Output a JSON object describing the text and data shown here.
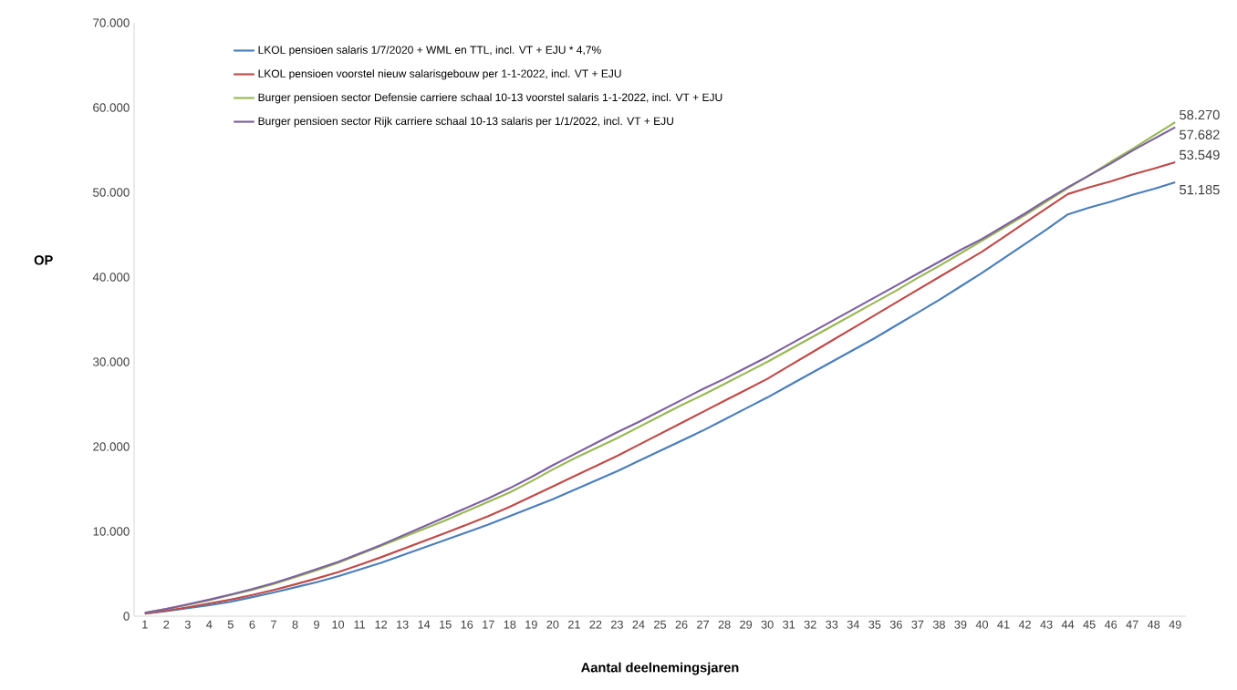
{
  "chart_data": {
    "type": "line",
    "xlabel": "Aantal deelnemingsjaren",
    "ylabel": "OP",
    "categories": [
      "1",
      "2",
      "3",
      "4",
      "5",
      "6",
      "7",
      "8",
      "9",
      "10",
      "11",
      "12",
      "13",
      "14",
      "15",
      "16",
      "17",
      "18",
      "19",
      "20",
      "21",
      "22",
      "23",
      "24",
      "25",
      "26",
      "27",
      "28",
      "29",
      "30",
      "31",
      "32",
      "33",
      "34",
      "35",
      "36",
      "37",
      "38",
      "39",
      "40",
      "41",
      "42",
      "43",
      "44",
      "45",
      "46",
      "47",
      "48",
      "49"
    ],
    "ylim": [
      0,
      70000
    ],
    "yticks": [
      0,
      {
        "value": 10000,
        "label": "10.000"
      },
      {
        "value": 20000,
        "label": "20.000"
      },
      {
        "value": 30000,
        "label": "30.000"
      },
      {
        "value": 40000,
        "label": "40.000"
      },
      {
        "value": 50000,
        "label": "50.000"
      },
      {
        "value": 60000,
        "label": "60.000"
      },
      {
        "value": 70000,
        "label": "70.000"
      }
    ],
    "legend": "top left",
    "series": [
      {
        "name": "LKOL pensioen salaris 1/7/2020 + WML en TTL, incl. VT + EJU * 4,7%",
        "color": "#4a7ebb",
        "values": [
          300,
          600,
          950,
          1300,
          1700,
          2250,
          2800,
          3400,
          4000,
          4700,
          5500,
          6300,
          7200,
          8100,
          9000,
          9900,
          10800,
          11800,
          12800,
          13800,
          14900,
          16000,
          17100,
          18300,
          19500,
          20700,
          21900,
          23200,
          24500,
          25800,
          27200,
          28600,
          30000,
          31400,
          32800,
          34300,
          35800,
          37300,
          38900,
          40500,
          42200,
          43900,
          45600,
          47400,
          48200,
          48900,
          49700,
          50400,
          51185
        ],
        "value_labels": [
          null,
          null,
          null,
          null,
          null,
          null,
          null,
          null,
          null,
          null,
          null,
          null,
          null,
          null,
          null,
          null,
          null,
          null,
          null,
          null,
          null,
          null,
          null,
          null,
          null,
          null,
          null,
          null,
          null,
          null,
          null,
          null,
          null,
          null,
          null,
          null,
          null,
          null,
          null,
          null,
          null,
          null,
          null,
          null,
          null,
          null,
          null,
          null,
          "51.185"
        ]
      },
      {
        "name": "LKOL pensioen  voorstel nieuw salarisgebouw per 1-1-2022, incl. VT + EJU",
        "color": "#be4b48",
        "values": [
          300,
          650,
          1050,
          1500,
          1950,
          2500,
          3100,
          3750,
          4450,
          5200,
          6050,
          6950,
          7900,
          8850,
          9800,
          10800,
          11800,
          12900,
          14100,
          15300,
          16500,
          17700,
          18900,
          20200,
          21500,
          22800,
          24100,
          25400,
          26700,
          28000,
          29500,
          31000,
          32500,
          34000,
          35500,
          37000,
          38500,
          40000,
          41500,
          43000,
          44700,
          46400,
          48100,
          49800,
          50600,
          51300,
          52100,
          52800,
          53549
        ],
        "value_labels": [
          null,
          null,
          null,
          null,
          null,
          null,
          null,
          null,
          null,
          null,
          null,
          null,
          null,
          null,
          null,
          null,
          null,
          null,
          null,
          null,
          null,
          null,
          null,
          null,
          null,
          null,
          null,
          null,
          null,
          null,
          null,
          null,
          null,
          null,
          null,
          null,
          null,
          null,
          null,
          null,
          null,
          null,
          null,
          null,
          null,
          null,
          null,
          null,
          "53.549"
        ]
      },
      {
        "name": "Burger pensioen  sector Defensie carriere schaal 10-13 voorstel salaris 1-1-2022, incl. VT + EJU",
        "color": "#98b954",
        "values": [
          400,
          850,
          1350,
          1900,
          2500,
          3100,
          3800,
          4600,
          5400,
          6300,
          7300,
          8300,
          9300,
          10300,
          11300,
          12400,
          13500,
          14600,
          15900,
          17300,
          18600,
          19800,
          21000,
          22300,
          23600,
          24900,
          26100,
          27400,
          28700,
          30000,
          31400,
          32800,
          34200,
          35600,
          37000,
          38400,
          39900,
          41300,
          42800,
          44300,
          45800,
          47300,
          48900,
          50500,
          52000,
          53600,
          55100,
          56700,
          58270
        ],
        "value_labels": [
          null,
          null,
          null,
          null,
          null,
          null,
          null,
          null,
          null,
          null,
          null,
          null,
          null,
          null,
          null,
          null,
          null,
          null,
          null,
          null,
          null,
          null,
          null,
          null,
          null,
          null,
          null,
          null,
          null,
          null,
          null,
          null,
          null,
          null,
          null,
          null,
          null,
          null,
          null,
          null,
          null,
          null,
          null,
          null,
          null,
          null,
          null,
          null,
          "58.270"
        ]
      },
      {
        "name": "Burger pensioen  sector Rijk carriere schaal 10-13 salaris per 1/1/2022, incl. VT + EJU",
        "color": "#7d60a0",
        "values": [
          400,
          850,
          1400,
          1950,
          2550,
          3200,
          3900,
          4700,
          5550,
          6400,
          7400,
          8400,
          9500,
          10600,
          11700,
          12800,
          13900,
          15100,
          16400,
          17800,
          19100,
          20400,
          21700,
          22900,
          24200,
          25500,
          26800,
          28000,
          29300,
          30600,
          32000,
          33400,
          34800,
          36200,
          37600,
          39000,
          40400,
          41800,
          43200,
          44500,
          46000,
          47500,
          49100,
          50600,
          52000,
          53400,
          54900,
          56300,
          57682
        ],
        "value_labels": [
          null,
          null,
          null,
          null,
          null,
          null,
          null,
          null,
          null,
          null,
          null,
          null,
          null,
          null,
          null,
          null,
          null,
          null,
          null,
          null,
          null,
          null,
          null,
          null,
          null,
          null,
          null,
          null,
          null,
          null,
          null,
          null,
          null,
          null,
          null,
          null,
          null,
          null,
          null,
          null,
          null,
          null,
          null,
          null,
          null,
          null,
          null,
          null,
          "57.682"
        ]
      }
    ]
  }
}
